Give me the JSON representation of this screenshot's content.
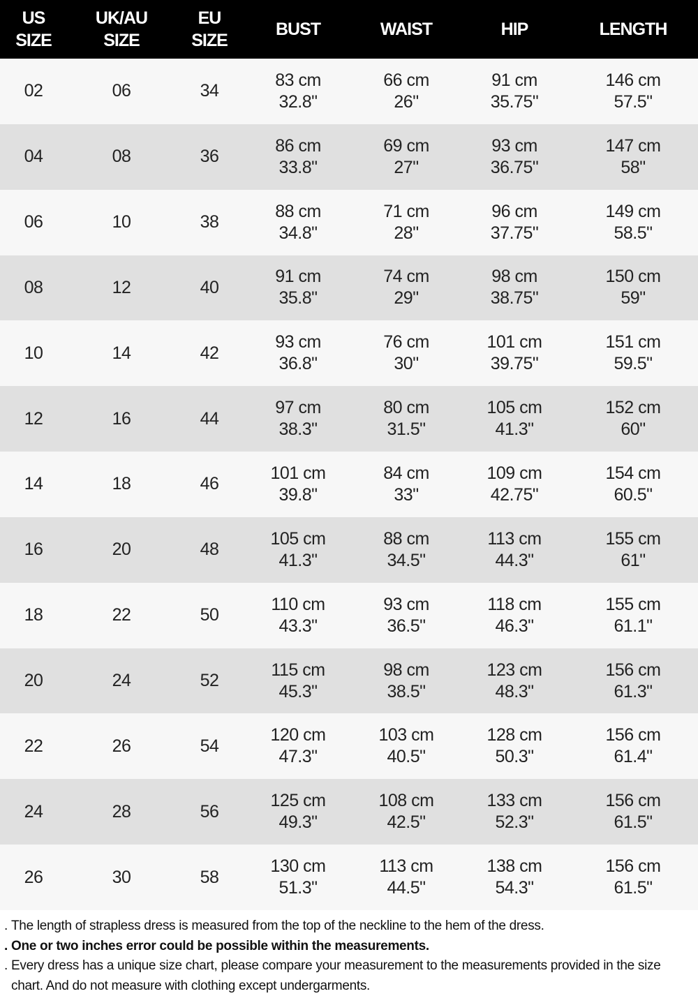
{
  "headers": [
    [
      "US",
      "SIZE"
    ],
    [
      "UK/AU",
      "SIZE"
    ],
    [
      "EU",
      "SIZE"
    ],
    [
      "BUST"
    ],
    [
      "WAIST"
    ],
    [
      "HIP"
    ],
    [
      "LENGTH"
    ]
  ],
  "rows": [
    {
      "us": "02",
      "uk": "06",
      "eu": "34",
      "bust": [
        "83 cm",
        "32.8\""
      ],
      "waist": [
        "66 cm",
        "26\""
      ],
      "hip": [
        "91 cm",
        "35.75\""
      ],
      "length": [
        "146 cm",
        "57.5\""
      ]
    },
    {
      "us": "04",
      "uk": "08",
      "eu": "36",
      "bust": [
        "86 cm",
        "33.8\""
      ],
      "waist": [
        "69 cm",
        "27\""
      ],
      "hip": [
        "93 cm",
        "36.75\""
      ],
      "length": [
        "147 cm",
        "58\""
      ]
    },
    {
      "us": "06",
      "uk": "10",
      "eu": "38",
      "bust": [
        "88 cm",
        "34.8\""
      ],
      "waist": [
        "71 cm",
        "28\""
      ],
      "hip": [
        "96 cm",
        "37.75\""
      ],
      "length": [
        "149 cm",
        "58.5\""
      ]
    },
    {
      "us": "08",
      "uk": "12",
      "eu": "40",
      "bust": [
        "91 cm",
        "35.8\""
      ],
      "waist": [
        "74 cm",
        "29\""
      ],
      "hip": [
        "98 cm",
        "38.75\""
      ],
      "length": [
        "150 cm",
        "59\""
      ]
    },
    {
      "us": "10",
      "uk": "14",
      "eu": "42",
      "bust": [
        "93 cm",
        "36.8\""
      ],
      "waist": [
        "76 cm",
        "30\""
      ],
      "hip": [
        "101 cm",
        "39.75\""
      ],
      "length": [
        "151 cm",
        "59.5\""
      ]
    },
    {
      "us": "12",
      "uk": "16",
      "eu": "44",
      "bust": [
        "97 cm",
        "38.3\""
      ],
      "waist": [
        "80 cm",
        "31.5\""
      ],
      "hip": [
        "105 cm",
        "41.3\""
      ],
      "length": [
        "152 cm",
        "60\""
      ]
    },
    {
      "us": "14",
      "uk": "18",
      "eu": "46",
      "bust": [
        "101 cm",
        "39.8\""
      ],
      "waist": [
        "84 cm",
        "33\""
      ],
      "hip": [
        "109 cm",
        "42.75\""
      ],
      "length": [
        "154 cm",
        "60.5\""
      ]
    },
    {
      "us": "16",
      "uk": "20",
      "eu": "48",
      "bust": [
        "105 cm",
        "41.3\""
      ],
      "waist": [
        "88 cm",
        "34.5\""
      ],
      "hip": [
        "113 cm",
        "44.3\""
      ],
      "length": [
        "155 cm",
        "61\""
      ]
    },
    {
      "us": "18",
      "uk": "22",
      "eu": "50",
      "bust": [
        "110 cm",
        "43.3\""
      ],
      "waist": [
        "93 cm",
        "36.5\""
      ],
      "hip": [
        "118 cm",
        "46.3\""
      ],
      "length": [
        "155 cm",
        "61.1\""
      ]
    },
    {
      "us": "20",
      "uk": "24",
      "eu": "52",
      "bust": [
        "115 cm",
        "45.3\""
      ],
      "waist": [
        "98 cm",
        "38.5\""
      ],
      "hip": [
        "123 cm",
        "48.3\""
      ],
      "length": [
        "156 cm",
        "61.3\""
      ]
    },
    {
      "us": "22",
      "uk": "26",
      "eu": "54",
      "bust": [
        "120 cm",
        "47.3\""
      ],
      "waist": [
        "103 cm",
        "40.5\""
      ],
      "hip": [
        "128 cm",
        "50.3\""
      ],
      "length": [
        "156 cm",
        "61.4\""
      ]
    },
    {
      "us": "24",
      "uk": "28",
      "eu": "56",
      "bust": [
        "125 cm",
        "49.3\""
      ],
      "waist": [
        "108 cm",
        "42.5\""
      ],
      "hip": [
        "133 cm",
        "52.3\""
      ],
      "length": [
        "156 cm",
        "61.5\""
      ]
    },
    {
      "us": "26",
      "uk": "30",
      "eu": "58",
      "bust": [
        "130 cm",
        "51.3\""
      ],
      "waist": [
        "113 cm",
        "44.5\""
      ],
      "hip": [
        "138 cm",
        "54.3\""
      ],
      "length": [
        "156 cm",
        "61.5\""
      ]
    }
  ],
  "notes": [
    {
      "text": "The length of strapless dress is measured from the top of the neckline to the hem of the dress.",
      "bold": false
    },
    {
      "text": "One or two inches error could be possible within the measurements.",
      "bold": true
    },
    {
      "text": "Every dress has a unique size chart, please compare your measurement to the measurements provided in the size chart. And do not measure with clothing except undergarments.",
      "bold": false
    }
  ],
  "colors": {
    "header_bg": "#000000",
    "header_text": "#ffffff",
    "row_light": "#f7f7f7",
    "row_dark": "#e0e0e0"
  }
}
